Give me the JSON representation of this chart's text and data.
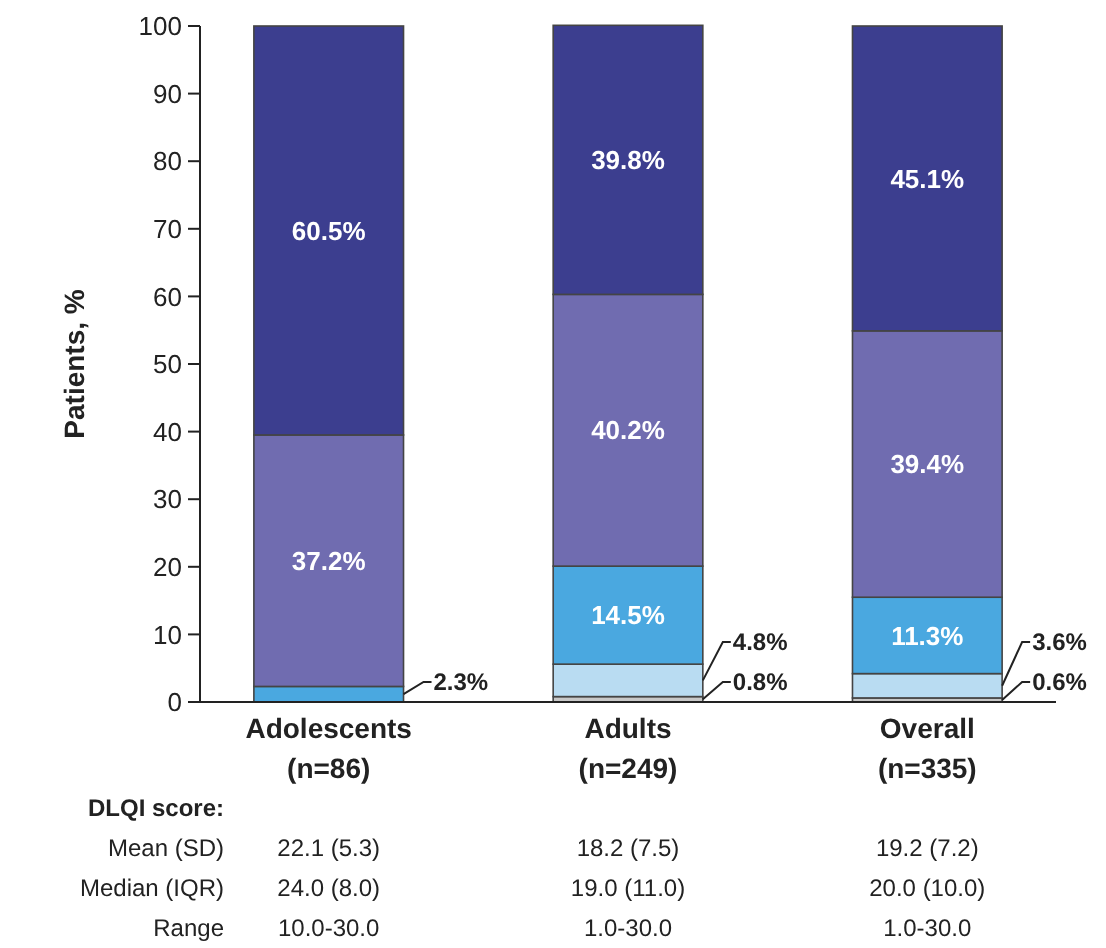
{
  "chart_data": {
    "type": "bar",
    "stacked": true,
    "ylabel": "Patients, %",
    "categories": [
      "Adolescents\n(n=86)",
      "Adults\n(n=249)",
      "Overall\n(n=335)"
    ],
    "ylim": [
      0,
      100
    ],
    "yticks": [
      0,
      10,
      20,
      30,
      40,
      50,
      60,
      70,
      80,
      90,
      100
    ],
    "grid": false,
    "series": [
      {
        "color": "#c8c8c8",
        "values": [
          0,
          0.8,
          0.6
        ],
        "value_labels": [
          null,
          "0.8%",
          "0.6%"
        ]
      },
      {
        "color": "#b9dcf2",
        "values": [
          0,
          4.8,
          3.6
        ],
        "value_labels": [
          null,
          "4.8%",
          "3.6%"
        ]
      },
      {
        "color": "#4aa8e0",
        "values": [
          2.3,
          14.5,
          11.3
        ],
        "value_labels": [
          "2.3%",
          "14.5%",
          "11.3%"
        ]
      },
      {
        "color": "#706cb0",
        "values": [
          37.2,
          40.2,
          39.4
        ],
        "value_labels": [
          "37.2%",
          "40.2%",
          "39.4%"
        ]
      },
      {
        "color": "#3c3e8f",
        "values": [
          60.5,
          39.8,
          45.1
        ],
        "value_labels": [
          "60.5%",
          "39.8%",
          "45.1%"
        ]
      }
    ],
    "annotations": [
      "DLQI score:",
      "Mean (SD)",
      "22.1 (5.3)",
      "18.2 (7.5)",
      "19.2 (7.2)",
      "Median (IQR)",
      "24.0 (8.0)",
      "19.0 (11.0)",
      "20.0 (10.0)",
      "Range",
      "10.0-30.0",
      "1.0-30.0",
      "1.0-30.0"
    ]
  }
}
